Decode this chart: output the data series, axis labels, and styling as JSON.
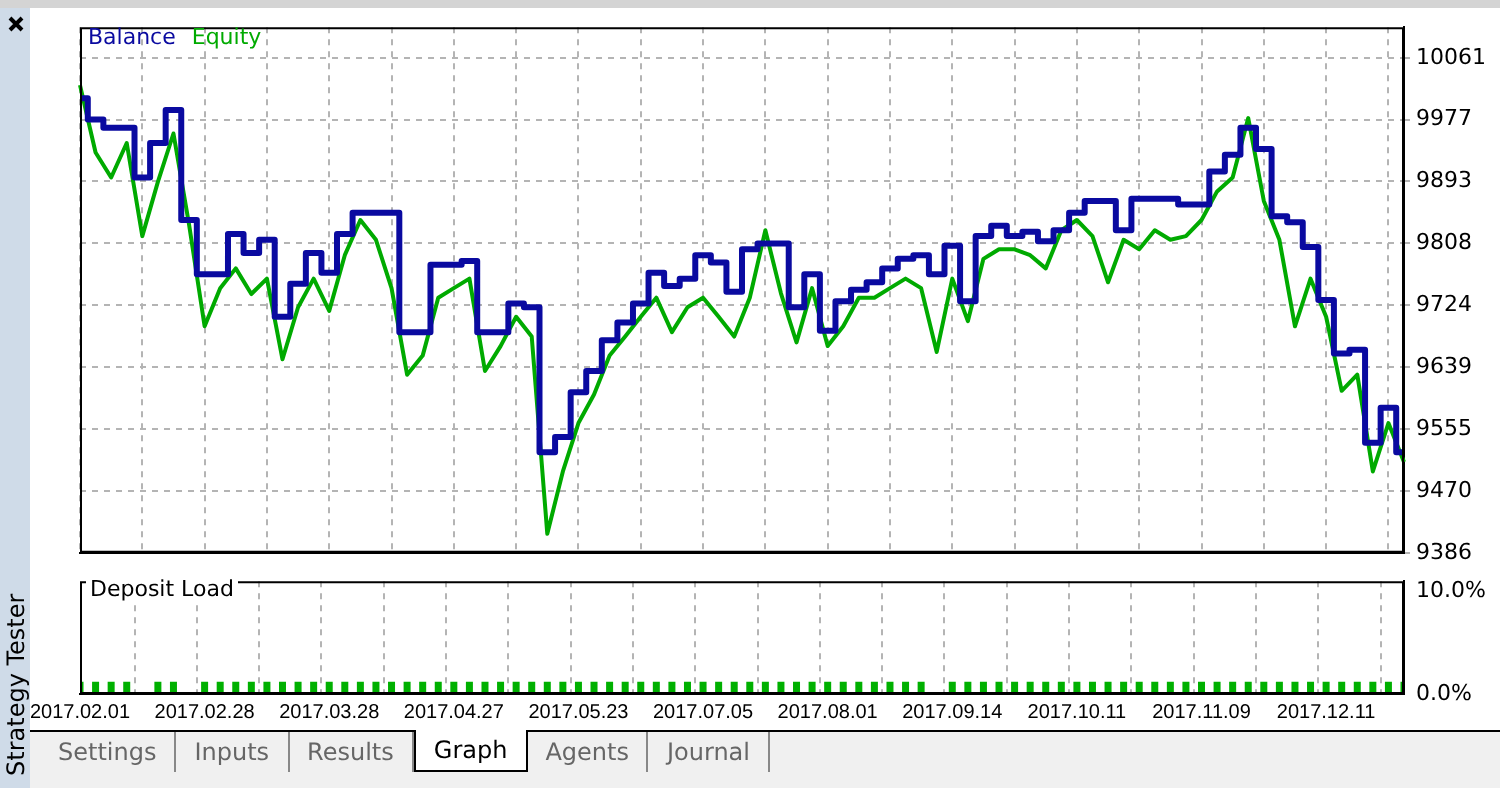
{
  "chart_data": [
    {
      "type": "line",
      "legend": "top left",
      "marker": "none",
      "categories": [
        "2017.02.01",
        null,
        null,
        null,
        null,
        null,
        null,
        null,
        "2017.02.28",
        null,
        null,
        null,
        null,
        null,
        null,
        null,
        "2017.03.28",
        null,
        null,
        null,
        null,
        null,
        null,
        null,
        "2017.04.27",
        null,
        null,
        null,
        null,
        null,
        null,
        null,
        "2017.05.23",
        null,
        null,
        null,
        null,
        null,
        null,
        null,
        "2017.07.05",
        null,
        null,
        null,
        null,
        null,
        null,
        null,
        "2017.08.01",
        null,
        null,
        null,
        null,
        null,
        null,
        null,
        "2017.09.14",
        null,
        null,
        null,
        null,
        null,
        null,
        null,
        "2017.10.11",
        null,
        null,
        null,
        null,
        null,
        null,
        null,
        "2017.11.09",
        null,
        null,
        null,
        null,
        null,
        null,
        null,
        "2017.12.11",
        null,
        null,
        null,
        null,
        null
      ],
      "series": [
        {
          "name": "Balance",
          "type": "step",
          "color": "#0a0aa0",
          "values": [
            10006,
            9977,
            9966,
            9966,
            9898,
            9945,
            9990,
            9840,
            9766,
            9766,
            9821,
            9795,
            9813,
            9708,
            9753,
            9795,
            9768,
            9821,
            9850,
            9850,
            9850,
            9687,
            9687,
            9779,
            9779,
            9784,
            9687,
            9687,
            9726,
            9721,
            9523,
            9544,
            9605,
            9634,
            9676,
            9700,
            9726,
            9768,
            9750,
            9760,
            9792,
            9782,
            9742,
            9800,
            9808,
            9808,
            9721,
            9766,
            9689,
            9729,
            9745,
            9755,
            9774,
            9787,
            9792,
            9766,
            9805,
            9729,
            9818,
            9832,
            9818,
            9824,
            9811,
            9826,
            9850,
            9866,
            9866,
            9826,
            9869,
            9869,
            9869,
            9861,
            9861,
            9906,
            9929,
            9966,
            9937,
            9845,
            9837,
            9803,
            9731,
            9658,
            9663,
            9536,
            9584,
            9523
          ]
        },
        {
          "name": "Equity",
          "type": "line",
          "color": "#00aa00",
          "values": [
            10024,
            9932,
            9898,
            9945,
            9818,
            9892,
            9958,
            9834,
            9695,
            9747,
            9774,
            9739,
            9760,
            9650,
            9721,
            9760,
            9716,
            9792,
            9840,
            9813,
            9747,
            9629,
            9655,
            9734,
            9747,
            9760,
            9634,
            9668,
            9708,
            9681,
            9412,
            9497,
            9563,
            9602,
            9655,
            9681,
            9708,
            9734,
            9687,
            9721,
            9734,
            9708,
            9681,
            9734,
            9826,
            9740,
            9673,
            9747,
            9668,
            9695,
            9734,
            9734,
            9747,
            9760,
            9747,
            9660,
            9760,
            9702,
            9787,
            9800,
            9800,
            9792,
            9774,
            9826,
            9840,
            9818,
            9755,
            9813,
            9800,
            9826,
            9813,
            9818,
            9840,
            9879,
            9898,
            9979,
            9866,
            9813,
            9695,
            9760,
            9708,
            9607,
            9629,
            9497,
            9563,
            9510
          ]
        }
      ],
      "ylim": [
        9386,
        10103
      ],
      "yticks": [
        9386,
        9470,
        9555,
        9639,
        9724,
        9808,
        9893,
        9977,
        10061
      ],
      "grid": true,
      "tick_labels": "y"
    },
    {
      "type": "bar",
      "title": "Deposit Load",
      "categories": [
        "2017.02.01",
        null,
        null,
        null,
        null,
        null,
        null,
        null,
        "2017.02.28",
        null,
        null,
        null,
        null,
        null,
        null,
        null,
        "2017.03.28",
        null,
        null,
        null,
        null,
        null,
        null,
        null,
        "2017.04.27",
        null,
        null,
        null,
        null,
        null,
        null,
        null,
        "2017.05.23",
        null,
        null,
        null,
        null,
        null,
        null,
        null,
        "2017.07.05",
        null,
        null,
        null,
        null,
        null,
        null,
        null,
        "2017.08.01",
        null,
        null,
        null,
        null,
        null,
        null,
        null,
        "2017.09.14",
        null,
        null,
        null,
        null,
        null,
        null,
        null,
        "2017.10.11",
        null,
        null,
        null,
        null,
        null,
        null,
        null,
        "2017.11.09",
        null,
        null,
        null,
        null,
        null,
        null,
        null,
        "2017.12.11",
        null,
        null,
        null,
        null,
        null
      ],
      "values": [
        1.2,
        1.2,
        1.2,
        1.2,
        null,
        1.2,
        1.2,
        null,
        1.2,
        1.2,
        1.2,
        1.2,
        1.2,
        1.2,
        1.2,
        1.2,
        1.2,
        1.2,
        1.2,
        1.2,
        1.2,
        1.2,
        1.2,
        1.2,
        1.2,
        1.2,
        1.2,
        1.2,
        1.2,
        1.2,
        1.2,
        1.2,
        1.2,
        1.2,
        1.2,
        1.2,
        1.2,
        1.2,
        1.2,
        1.2,
        1.2,
        1.2,
        1.2,
        1.2,
        1.2,
        1.2,
        1.2,
        1.2,
        1.2,
        1.2,
        1.2,
        1.2,
        1.2,
        1.2,
        1.2,
        null,
        1.2,
        1.2,
        1.2,
        1.2,
        1.2,
        1.2,
        1.2,
        1.2,
        1.2,
        1.2,
        1.2,
        1.2,
        1.2,
        1.2,
        1.2,
        1.2,
        1.2,
        1.2,
        1.2,
        1.2,
        1.2,
        1.2,
        1.2,
        1.2,
        1.2,
        1.2,
        1.2,
        1.2,
        1.2,
        1.2
      ],
      "color": "#00b000",
      "ylim": [
        0,
        11
      ],
      "yticks": [
        {
          "value": 0,
          "label": "0.0%"
        },
        {
          "value": 10,
          "label": "10.0%"
        }
      ],
      "grid": "x"
    },
    {
      "type": "other",
      "annotations": [
        "Strategy Tester",
        "Settings",
        "Inputs",
        "Results",
        "Graph",
        "Agents",
        "Journal"
      ]
    }
  ]
}
